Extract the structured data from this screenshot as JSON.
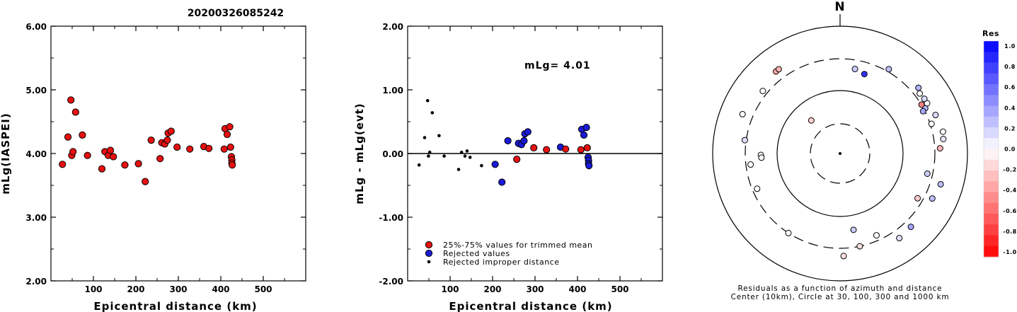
{
  "title": "20200326085242",
  "colors": {
    "red": "#e81010",
    "blue": "#1a1ad8",
    "black": "#000000"
  },
  "chart_data": [
    {
      "type": "scatter",
      "xlabel": "Epicentral distance (km)",
      "ylabel": "mLg(IASPEI)",
      "xlim": [
        0,
        600
      ],
      "ylim": [
        2.0,
        6.0
      ],
      "xticks": [
        "100",
        "200",
        "300",
        "400",
        "500"
      ],
      "yticks": [
        "2.00",
        "3.00",
        "4.00",
        "5.00",
        "6.00"
      ],
      "series": [
        {
          "color": "red",
          "points": [
            [
              27,
              3.83
            ],
            [
              40,
              4.26
            ],
            [
              47,
              4.84
            ],
            [
              49,
              3.97
            ],
            [
              52,
              4.03
            ],
            [
              58,
              4.65
            ],
            [
              74,
              4.29
            ],
            [
              86,
              3.97
            ],
            [
              120,
              3.76
            ],
            [
              127,
              4.03
            ],
            [
              135,
              3.97
            ],
            [
              140,
              4.05
            ],
            [
              147,
              3.95
            ],
            [
              174,
              3.82
            ],
            [
              206,
              3.84
            ],
            [
              222,
              3.56
            ],
            [
              236,
              4.21
            ],
            [
              257,
              3.92
            ],
            [
              261,
              4.17
            ],
            [
              268,
              4.15
            ],
            [
              274,
              4.21
            ],
            [
              276,
              4.32
            ],
            [
              283,
              4.35
            ],
            [
              297,
              4.1
            ],
            [
              327,
              4.07
            ],
            [
              360,
              4.11
            ],
            [
              372,
              4.08
            ],
            [
              408,
              4.07
            ],
            [
              410,
              4.39
            ],
            [
              415,
              4.3
            ],
            [
              421,
              4.42
            ],
            [
              423,
              4.1
            ],
            [
              425,
              3.95
            ],
            [
              426,
              3.9
            ],
            [
              426,
              3.85
            ],
            [
              427,
              3.82
            ]
          ]
        }
      ]
    },
    {
      "type": "scatter",
      "xlabel": "Epicentral distance (km)",
      "ylabel": "mLg - mLg(evt)",
      "xlim": [
        0,
        600
      ],
      "ylim": [
        -2.0,
        2.0
      ],
      "xticks": [
        "100",
        "200",
        "300",
        "400",
        "500"
      ],
      "yticks": [
        "-2.00",
        "-1.00",
        "0.00",
        "1.00",
        "2.00"
      ],
      "annotation": "mLg= 4.01",
      "legend": [
        {
          "label": "25%-75% values for trimmed mean",
          "color": "red",
          "marker": "large"
        },
        {
          "label": "Rejected values",
          "color": "blue",
          "marker": "large"
        },
        {
          "label": "Rejected improper distance",
          "color": "black",
          "marker": "small"
        }
      ],
      "series": [
        {
          "name": "Rejected improper distance",
          "color": "black",
          "marker": "small",
          "points": [
            [
              27,
              -0.18
            ],
            [
              40,
              0.25
            ],
            [
              47,
              0.83
            ],
            [
              49,
              -0.04
            ],
            [
              52,
              0.02
            ],
            [
              58,
              0.64
            ],
            [
              74,
              0.28
            ],
            [
              86,
              -0.04
            ],
            [
              120,
              -0.25
            ],
            [
              127,
              0.02
            ],
            [
              135,
              -0.04
            ],
            [
              140,
              0.04
            ],
            [
              147,
              -0.06
            ],
            [
              174,
              -0.19
            ]
          ]
        },
        {
          "name": "Rejected values",
          "color": "blue",
          "marker": "large",
          "points": [
            [
              206,
              -0.17
            ],
            [
              222,
              -0.45
            ],
            [
              236,
              0.2
            ],
            [
              261,
              0.16
            ],
            [
              268,
              0.14
            ],
            [
              274,
              0.2
            ],
            [
              276,
              0.31
            ],
            [
              283,
              0.34
            ],
            [
              360,
              0.1
            ],
            [
              410,
              0.38
            ],
            [
              415,
              0.29
            ],
            [
              421,
              0.41
            ],
            [
              425,
              -0.06
            ],
            [
              426,
              -0.11
            ],
            [
              426,
              -0.16
            ],
            [
              427,
              -0.19
            ]
          ]
        },
        {
          "name": "25%-75% values for trimmed mean",
          "color": "red",
          "marker": "large",
          "points": [
            [
              257,
              -0.09
            ],
            [
              297,
              0.09
            ],
            [
              327,
              0.06
            ],
            [
              372,
              0.07
            ],
            [
              408,
              0.06
            ],
            [
              423,
              0.09
            ]
          ]
        }
      ]
    },
    {
      "type": "polar-scatter",
      "north_label": "N",
      "caption_line1": "Residuals as a function of azimuth and distance",
      "caption_line2": "Center (10km), Circle at 30, 100, 300 and 1000 km",
      "colorbar_title": "Res",
      "colorbar_ticks": [
        "1.0",
        "0.8",
        "0.6",
        "0.4",
        "0.2",
        "0.0",
        "-0.2",
        "-0.4",
        "-0.6",
        "-0.8",
        "-1.0"
      ],
      "points": [
        {
          "az": -38,
          "dist": 423,
          "res": -0.35
        },
        {
          "az": -36,
          "dist": 425,
          "res": -0.3
        },
        {
          "az": -51,
          "dist": 355,
          "res": 0.0
        },
        {
          "az": -68,
          "dist": 440,
          "res": 0.0
        },
        {
          "az": -82,
          "dist": 315,
          "res": 0.12
        },
        {
          "az": -97,
          "dist": 255,
          "res": 0.0
        },
        {
          "az": -91,
          "dist": 175,
          "res": 0.0
        },
        {
          "az": -93,
          "dist": 172,
          "res": 0.0
        },
        {
          "az": -113,
          "dist": 255,
          "res": 0.0
        },
        {
          "az": -147,
          "dist": 300,
          "res": 0.0
        },
        {
          "az": 156,
          "dist": 250,
          "res": 0.0
        },
        {
          "az": 168,
          "dist": 300,
          "res": -0.12
        },
        {
          "az": 178,
          "dist": 400,
          "res": -0.12
        },
        {
          "az": 145,
          "dist": 410,
          "res": 0.12
        },
        {
          "az": 136,
          "dist": 390,
          "res": 0.35
        },
        {
          "az": 116,
          "dist": 400,
          "res": 0.25
        },
        {
          "az": 107,
          "dist": 440,
          "res": 0.25
        },
        {
          "az": 120,
          "dist": 250,
          "res": -0.2
        },
        {
          "az": 103,
          "dist": 250,
          "res": 0.2
        },
        {
          "az": 170,
          "dist": 165,
          "res": 0.2
        },
        {
          "az": 17,
          "dist": 200,
          "res": 0.8
        },
        {
          "az": 10,
          "dist": 220,
          "res": 0.2
        },
        {
          "az": -41,
          "dist": 50,
          "res": -0.2
        },
        {
          "az": 72,
          "dist": 315,
          "res": 0.0
        },
        {
          "az": 78,
          "dist": 440,
          "res": 0.0
        },
        {
          "az": 82,
          "dist": 425,
          "res": 0.1
        },
        {
          "az": 68,
          "dist": 405,
          "res": 0.15
        },
        {
          "az": 60,
          "dist": 370,
          "res": 0.0
        },
        {
          "az": 57,
          "dist": 370,
          "res": 0.15
        },
        {
          "az": 53,
          "dist": 360,
          "res": 0.0
        },
        {
          "az": 62,
          "dist": 318,
          "res": 0.3
        },
        {
          "az": 63,
          "dist": 283,
          "res": 0.35
        },
        {
          "az": 87,
          "dist": 365,
          "res": -0.3
        },
        {
          "az": 59,
          "dist": 302,
          "res": -0.5
        },
        {
          "az": 50,
          "dist": 395,
          "res": 0.3
        },
        {
          "az": 30,
          "dist": 330,
          "res": 0.25
        }
      ]
    }
  ]
}
